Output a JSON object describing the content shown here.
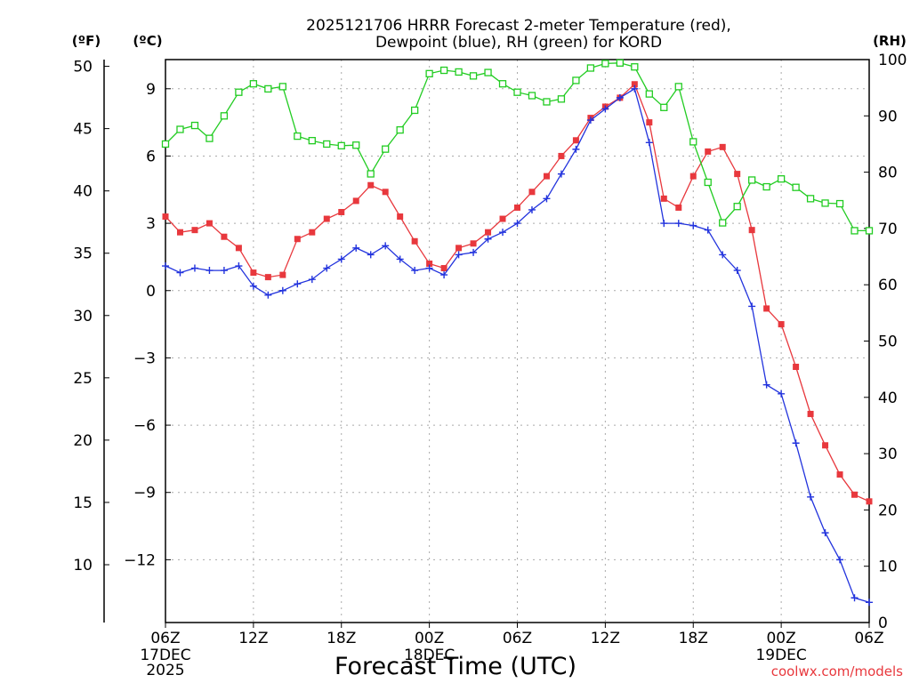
{
  "chart_data": {
    "type": "line",
    "title_line1": "2025121706 HRRR Forecast 2-meter Temperature (red),",
    "title_line2": "Dewpoint (blue), RH (green) for KORD",
    "xlabel": "Forecast Time (UTC)",
    "credit": "coolwx.com/models",
    "units": {
      "fahrenheit": "(ºF)",
      "celsius": "(ºC)",
      "rh": "(RH)"
    },
    "x_start_hour": 6,
    "x_range": [
      0,
      48
    ],
    "x_ticks": [
      {
        "hour": 0,
        "line1": "06Z",
        "line2": "17DEC",
        "line3": "2025"
      },
      {
        "hour": 6,
        "line1": "12Z",
        "line2": "",
        "line3": ""
      },
      {
        "hour": 12,
        "line1": "18Z",
        "line2": "",
        "line3": ""
      },
      {
        "hour": 18,
        "line1": "00Z",
        "line2": "18DEC",
        "line3": ""
      },
      {
        "hour": 24,
        "line1": "06Z",
        "line2": "",
        "line3": ""
      },
      {
        "hour": 30,
        "line1": "12Z",
        "line2": "",
        "line3": ""
      },
      {
        "hour": 36,
        "line1": "18Z",
        "line2": "",
        "line3": ""
      },
      {
        "hour": 42,
        "line1": "00Z",
        "line2": "19DEC",
        "line3": ""
      },
      {
        "hour": 48,
        "line1": "06Z",
        "line2": "",
        "line3": ""
      }
    ],
    "celsius_range": [
      -14.8,
      10.3
    ],
    "celsius_ticks": [
      "9",
      "6",
      "3",
      "0",
      "−3",
      "−6",
      "−9",
      "−12"
    ],
    "fahrenheit_ticks": [
      "50",
      "45",
      "40",
      "35",
      "30",
      "25",
      "20",
      "15",
      "10"
    ],
    "rh_range": [
      0,
      100
    ],
    "rh_ticks": [
      "100",
      "90",
      "80",
      "70",
      "60",
      "50",
      "40",
      "30",
      "20",
      "10",
      "0"
    ],
    "colors": {
      "temperature": "#e8383d",
      "dewpoint": "#2233dd",
      "rh": "#22cc22",
      "grid": "#aaaaaa"
    },
    "series": [
      {
        "name": "2-meter Temperature",
        "unit": "C",
        "marker": "filled-square",
        "values": [
          3.3,
          2.6,
          2.7,
          3.0,
          2.4,
          1.9,
          0.8,
          0.6,
          0.7,
          2.3,
          2.6,
          3.2,
          3.5,
          4.0,
          4.7,
          4.4,
          3.3,
          2.2,
          1.2,
          1.0,
          1.9,
          2.1,
          2.6,
          3.2,
          3.7,
          4.4,
          5.1,
          6.0,
          6.7,
          7.7,
          8.2,
          8.6,
          9.2,
          7.5,
          4.1,
          3.7,
          5.1,
          6.2,
          6.4,
          5.2,
          2.7,
          -0.8,
          -1.5,
          -3.4,
          -5.5,
          -6.9,
          -8.2,
          -9.1,
          -9.4
        ]
      },
      {
        "name": "Dewpoint",
        "unit": "C",
        "marker": "plus",
        "values": [
          1.1,
          0.8,
          1.0,
          0.9,
          0.9,
          1.1,
          0.2,
          -0.2,
          0.0,
          0.3,
          0.5,
          1.0,
          1.4,
          1.9,
          1.6,
          2.0,
          1.4,
          0.9,
          1.0,
          0.7,
          1.6,
          1.7,
          2.3,
          2.6,
          3.0,
          3.6,
          4.1,
          5.2,
          6.3,
          7.6,
          8.1,
          8.6,
          9.0,
          6.6,
          3.0,
          3.0,
          2.9,
          2.7,
          1.6,
          0.9,
          -0.7,
          -4.2,
          -4.6,
          -6.8,
          -9.2,
          -10.8,
          -12.0,
          -13.7,
          -13.9
        ]
      },
      {
        "name": "RH",
        "unit": "%",
        "marker": "open-square",
        "values": [
          85,
          87.6,
          88.3,
          86,
          90,
          94.2,
          95.7,
          94.8,
          95.2,
          86.4,
          85.6,
          85,
          84.7,
          84.8,
          79.7,
          84.1,
          87.5,
          91,
          97.5,
          98.1,
          97.8,
          97.1,
          97.7,
          95.7,
          94.2,
          93.6,
          92.5,
          93,
          96.3,
          98.5,
          99.3,
          99.4,
          98.7,
          93.9,
          91.5,
          95.2,
          85.4,
          78.2,
          71,
          73.9,
          78.6,
          77.4,
          78.8,
          77.3,
          75.3,
          74.5,
          74.4,
          69.6,
          69.6
        ]
      }
    ]
  }
}
